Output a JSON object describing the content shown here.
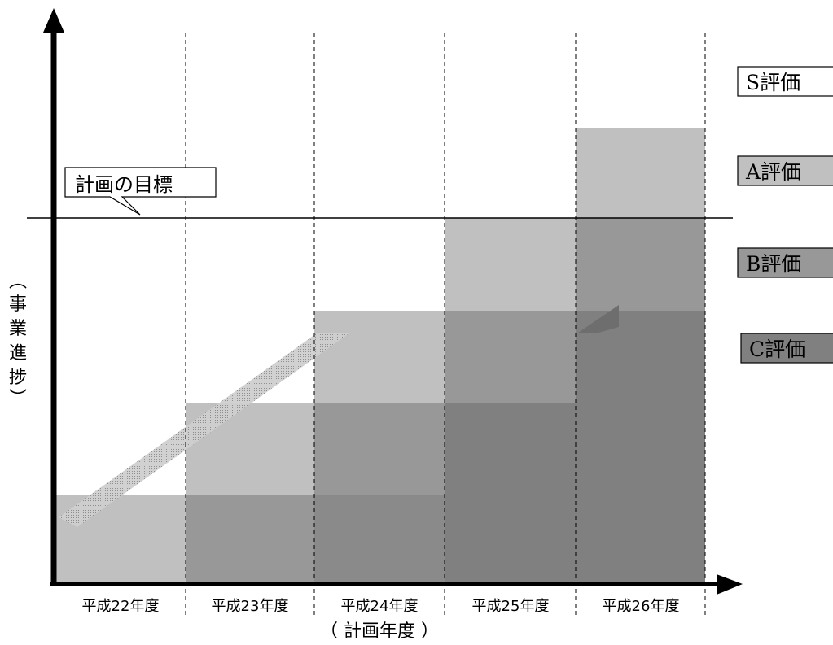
{
  "callout": {
    "text": "計画の目標"
  },
  "y_axis": {
    "label_chars": [
      "︵",
      "事",
      "業",
      "進",
      "捗",
      "︶"
    ]
  },
  "x_axis": {
    "label": "（ 計画年度 ）",
    "ticks": [
      "平成22年度",
      "平成23年度",
      "平成24年度",
      "平成25年度",
      "平成26年度"
    ]
  },
  "legend": [
    {
      "text": "S評価",
      "fill": "#ffffff"
    },
    {
      "text": "A評価",
      "fill": "#c0c0c0"
    },
    {
      "text": "B評価",
      "fill": "#989898"
    },
    {
      "text": "C評価",
      "fill": "#808080"
    }
  ],
  "colors": {
    "light": "#c0c0c0",
    "mid": "#989898",
    "dark": "#808080",
    "axis": "#000000"
  }
}
